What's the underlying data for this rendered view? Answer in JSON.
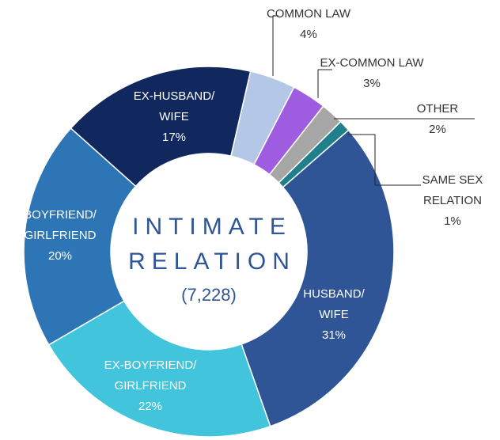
{
  "chart_data": {
    "type": "donut",
    "categories": [
      [
        "COMMON LAW"
      ],
      [
        "EX-COMMON LAW"
      ],
      [
        "OTHER"
      ],
      [
        "SAME SEX",
        "RELATION"
      ],
      [
        "HUSBAND/",
        "WIFE"
      ],
      [
        "EX-BOYFRIEND/",
        "GIRLFRIEND"
      ],
      [
        "BOYFRIEND/",
        "GIRLFRIEND"
      ],
      [
        "EX-HUSBAND/",
        "WIFE"
      ]
    ],
    "values": [
      4,
      3,
      2,
      1,
      31,
      22,
      20,
      17
    ],
    "value_labels": [
      "4%",
      "3%",
      "2%",
      "1%",
      "31%",
      "22%",
      "20%",
      "17%"
    ],
    "colors": [
      "#b4c7e7",
      "#9e5ce0",
      "#a6a6a6",
      "#1f7f8a",
      "#2f5597",
      "#41c4dc",
      "#2e75b6",
      "#10285e"
    ],
    "center_text": [
      "INTIMATE",
      "RELATION",
      "(7,228)"
    ]
  }
}
